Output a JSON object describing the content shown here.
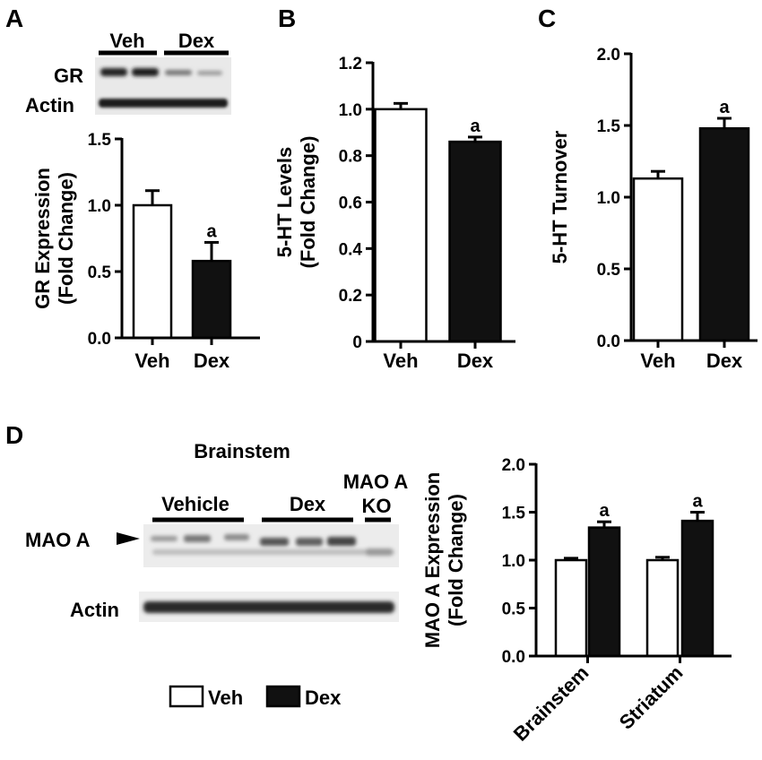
{
  "panels": {
    "A": {
      "letter": "A",
      "blot": {
        "groups": [
          "Veh",
          "Dex"
        ],
        "rows": [
          "GR",
          "Actin"
        ]
      }
    },
    "B": {
      "letter": "B"
    },
    "C": {
      "letter": "C"
    },
    "D": {
      "letter": "D",
      "blot": {
        "title": "Brainstem",
        "groups": [
          "Vehicle",
          "Dex",
          "MAO A",
          "KO"
        ],
        "rows": [
          "MAO A",
          "Actin"
        ]
      },
      "legend": [
        "Veh",
        "Dex"
      ]
    }
  },
  "colors": {
    "veh": "#ffffff",
    "dex": "#111111",
    "axis": "#000000"
  },
  "chart_data": [
    {
      "id": "A",
      "type": "bar",
      "categories": [
        "Veh",
        "Dex"
      ],
      "values": [
        1.0,
        0.58
      ],
      "errors": [
        0.11,
        0.14
      ],
      "significance": [
        "",
        "a"
      ],
      "ylabel": [
        "GR Expression",
        "(Fold Change)"
      ],
      "ylim": [
        0,
        1.5
      ],
      "yticks": [
        "0.0",
        "0.5",
        "1.0",
        "1.5"
      ],
      "ytick_values": [
        0,
        0.5,
        1.0,
        1.5
      ],
      "grid": false
    },
    {
      "id": "B",
      "type": "bar",
      "categories": [
        "Veh",
        "Dex"
      ],
      "values": [
        1.0,
        0.86
      ],
      "errors": [
        0.025,
        0.02
      ],
      "significance": [
        "",
        "a"
      ],
      "ylabel": [
        "5-HT Levels",
        "(Fold Change)"
      ],
      "ylim": [
        0,
        1.2
      ],
      "yticks": [
        "0",
        "0.2",
        "0.4",
        "0.6",
        "0.8",
        "1.0",
        "1.2"
      ],
      "ytick_values": [
        0,
        0.2,
        0.4,
        0.6,
        0.8,
        1.0,
        1.2
      ],
      "grid": false
    },
    {
      "id": "C",
      "type": "bar",
      "categories": [
        "Veh",
        "Dex"
      ],
      "values": [
        1.13,
        1.48
      ],
      "errors": [
        0.05,
        0.07
      ],
      "significance": [
        "",
        "a"
      ],
      "ylabel": [
        "5-HT Turnover"
      ],
      "ylim": [
        0,
        2.0
      ],
      "yticks": [
        "0.0",
        "0.5",
        "1.0",
        "1.5",
        "2.0"
      ],
      "ytick_values": [
        0,
        0.5,
        1.0,
        1.5,
        2.0
      ],
      "grid": false
    },
    {
      "id": "D",
      "type": "bar",
      "categories": [
        "Brainstem",
        "Striatum"
      ],
      "series": [
        {
          "name": "Veh",
          "values": [
            1.0,
            1.0
          ],
          "errors": [
            0.02,
            0.03
          ],
          "significance": [
            "",
            ""
          ]
        },
        {
          "name": "Dex",
          "values": [
            1.34,
            1.41
          ],
          "errors": [
            0.06,
            0.09
          ],
          "significance": [
            "a",
            "a"
          ]
        }
      ],
      "ylabel": [
        "MAO A Expression",
        "(Fold Change)"
      ],
      "ylim": [
        0,
        2.0
      ],
      "yticks": [
        "0.0",
        "0.5",
        "1.0",
        "1.5",
        "2.0"
      ],
      "ytick_values": [
        0,
        0.5,
        1.0,
        1.5,
        2.0
      ],
      "legend_placement": "bottom-left",
      "grid": false
    }
  ]
}
